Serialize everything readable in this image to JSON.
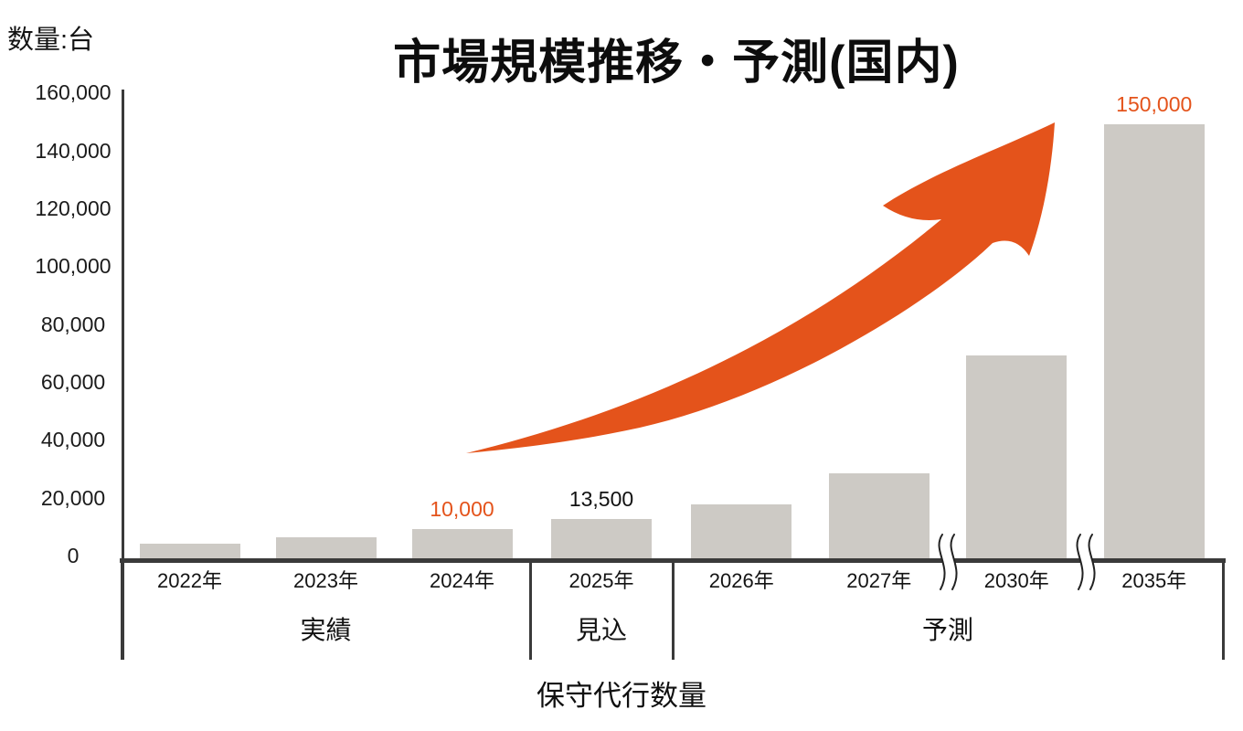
{
  "header": {
    "title": "市場規模推移・予測(国内)",
    "unit_label": "数量:台"
  },
  "chart_data": {
    "type": "bar",
    "title": "市場規模推移・予測(国内)",
    "ylabel": "数量:台",
    "xlabel": "保守代行数量",
    "categories": [
      "2022年",
      "2023年",
      "2024年",
      "2025年",
      "2026年",
      "2027年",
      "2030年",
      "2035年"
    ],
    "values": [
      5000,
      7200,
      10000,
      13500,
      18500,
      29500,
      70000,
      150000
    ],
    "bar_value_labels": [
      "",
      "",
      "10,000",
      "13,500",
      "",
      "",
      "",
      "150,000"
    ],
    "bar_value_label_colors": [
      "",
      "",
      "orange",
      "black",
      "",
      "",
      "",
      "orange"
    ],
    "y_ticks": [
      "160,000",
      "140,000",
      "120,000",
      "100,000",
      "80,000",
      "60,000",
      "40,000",
      "20,000",
      "0"
    ],
    "ylim": [
      0,
      160000
    ],
    "grid": false,
    "legend": "none",
    "sections": [
      {
        "label": "実績",
        "span": 3
      },
      {
        "label": "見込",
        "span": 1
      },
      {
        "label": "予測",
        "span": 4
      }
    ],
    "axis_breaks": [
      {
        "between": [
          "2027年",
          "2030年"
        ]
      },
      {
        "between": [
          "2030年",
          "2035年"
        ]
      }
    ],
    "annotations": [
      "growth-arrow"
    ]
  },
  "colors": {
    "accent_orange": "#e4531b",
    "bar_gray": "#cdcac5",
    "axis_line": "#3a3a3a",
    "text_black": "#111111"
  }
}
